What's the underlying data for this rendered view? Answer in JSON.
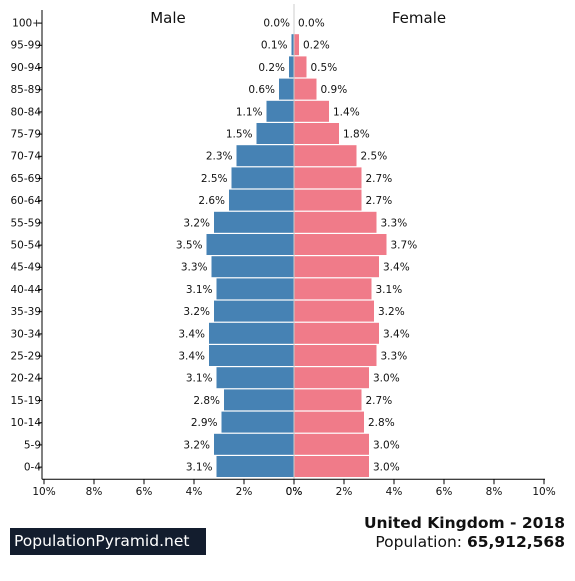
{
  "footer": {
    "brand": "PopulationPyramid.net",
    "title": "United Kingdom - 2018",
    "population_label": "Population:",
    "population_value": "65,912,568"
  },
  "colors": {
    "male": "#4682b4",
    "female": "#f07b89",
    "axis": "#000000"
  },
  "chart_data": {
    "type": "bar",
    "orientation": "horizontal-butterfly",
    "categories": [
      "100+",
      "95-99",
      "90-94",
      "85-89",
      "80-84",
      "75-79",
      "70-74",
      "65-69",
      "60-64",
      "55-59",
      "50-54",
      "45-49",
      "40-44",
      "35-39",
      "30-34",
      "25-29",
      "20-24",
      "15-19",
      "10-14",
      "5-9",
      "0-4"
    ],
    "series": [
      {
        "name": "Male",
        "values": [
          0.0,
          0.1,
          0.2,
          0.6,
          1.1,
          1.5,
          2.3,
          2.5,
          2.6,
          3.2,
          3.5,
          3.3,
          3.1,
          3.2,
          3.4,
          3.4,
          3.1,
          2.8,
          2.9,
          3.2,
          3.1
        ],
        "labels": [
          "0.0%",
          "0.1%",
          "0.2%",
          "0.6%",
          "1.1%",
          "1.5%",
          "2.3%",
          "2.5%",
          "2.6%",
          "3.2%",
          "3.5%",
          "3.3%",
          "3.1%",
          "3.2%",
          "3.4%",
          "3.4%",
          "3.1%",
          "2.8%",
          "2.9%",
          "3.2%",
          "3.1%"
        ]
      },
      {
        "name": "Female",
        "values": [
          0.0,
          0.2,
          0.5,
          0.9,
          1.4,
          1.8,
          2.5,
          2.7,
          2.7,
          3.3,
          3.7,
          3.4,
          3.1,
          3.2,
          3.4,
          3.3,
          3.0,
          2.7,
          2.8,
          3.0,
          3.0
        ],
        "labels": [
          "0.0%",
          "0.2%",
          "0.5%",
          "0.9%",
          "1.4%",
          "1.8%",
          "2.5%",
          "2.7%",
          "2.7%",
          "3.3%",
          "3.7%",
          "3.4%",
          "3.1%",
          "3.2%",
          "3.4%",
          "3.3%",
          "3.0%",
          "2.7%",
          "2.8%",
          "3.0%",
          "3.0%"
        ]
      }
    ],
    "x_ticks_left": [
      "10%",
      "8%",
      "6%",
      "4%",
      "2%",
      "0%"
    ],
    "x_ticks_right": [
      "0%",
      "2%",
      "4%",
      "6%",
      "8%",
      "10%"
    ],
    "xlim": [
      0,
      10
    ],
    "grid": false,
    "legend": "top"
  }
}
